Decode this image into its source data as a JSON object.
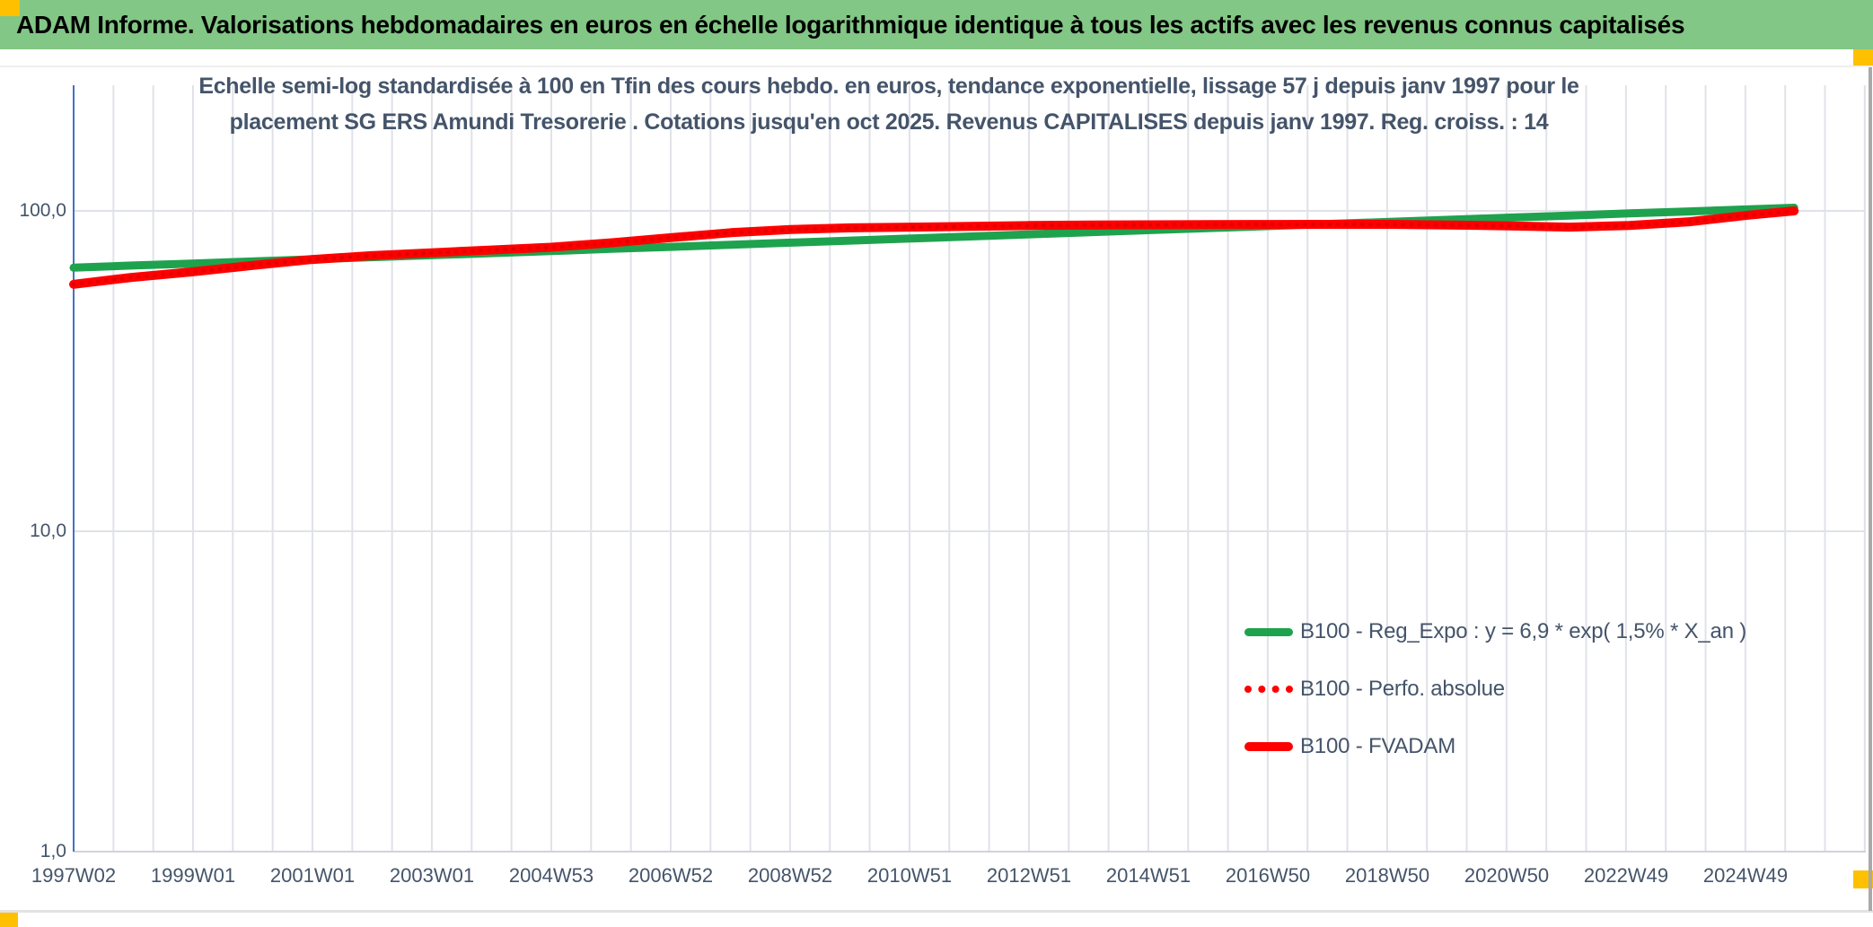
{
  "banner": {
    "title": "ADAM Informe. Valorisations hebdomadaires en euros en échelle logarithmique identique à tous les actifs avec les revenus connus capitalisés"
  },
  "colors": {
    "banner_bg": "#82C785",
    "corner_marker": "#FFC000",
    "title_text": "#44546A",
    "axis_text": "#44546A",
    "green_series": "#1FA24E",
    "red_series": "#FF0000",
    "dotted_red_series": "#E00000",
    "gridline": "#E0E2E8",
    "y_axis_line": "#4472C4"
  },
  "chart": {
    "title_line1": "Echelle semi-log standardisée à 100 en Tfin des cours hebdo. en euros, tendance exponentielle, lissage 57 j depuis janv 1997 pour le",
    "title_line2": "placement SG ERS Amundi Tresorerie . Cotations jusqu'en oct 2025. Revenus CAPITALISES depuis janv 1997. Reg. croiss. : 14"
  },
  "legend": [
    {
      "label": "B100 - Reg_Expo : y = 6,9 * exp( 1,5% *  X_an )",
      "style": "solid",
      "color": "#1FA24E"
    },
    {
      "label": "B100 - Perfo. absolue",
      "style": "dotted",
      "color": "#FF0000"
    },
    {
      "label": "B100 - FVADAM",
      "style": "solid",
      "color": "#FF0000"
    }
  ],
  "chart_data": {
    "type": "line",
    "x_scale": "time_weekly",
    "y_scale": "log10",
    "grid": true,
    "legend_position": "inside-bottom-right",
    "x_axis": {
      "tick_labels": [
        "1997W02",
        "1999W01",
        "2001W01",
        "2003W01",
        "2004W53",
        "2006W52",
        "2008W52",
        "2010W51",
        "2012W51",
        "2014W51",
        "2016W50",
        "2018W50",
        "2020W50",
        "2022W49",
        "2024W49"
      ],
      "tick_years": [
        1997.03,
        1999.02,
        2001.01,
        2003.0,
        2004.99,
        2006.98,
        2008.97,
        2010.96,
        2012.95,
        2014.94,
        2016.93,
        2018.92,
        2020.91,
        2022.9,
        2024.89
      ]
    },
    "y_axis": {
      "tick_labels": [
        "100,0",
        "10,0",
        "1,0"
      ],
      "tick_values": [
        100,
        10,
        1
      ],
      "range": [
        1,
        250
      ]
    },
    "x_years": [
      1997.03,
      1998,
      1999,
      2000,
      2001,
      2002,
      2003,
      2004,
      2005,
      2006,
      2007,
      2008,
      2009,
      2010,
      2011,
      2012,
      2013,
      2014,
      2015,
      2016,
      2017,
      2018,
      2019,
      2020,
      2021,
      2022,
      2023,
      2024,
      2025,
      2025.75
    ],
    "series": [
      {
        "name": "B100 - Reg_Expo : y = 6,9 * exp( 1,5% *  X_an )",
        "color": "#1FA24E",
        "style": "solid",
        "width": 9,
        "values": [
          66.5,
          67.5,
          68.5,
          69.5,
          70.6,
          71.7,
          72.7,
          73.8,
          74.9,
          76.1,
          77.2,
          78.4,
          79.6,
          80.8,
          82.0,
          83.2,
          84.5,
          85.8,
          87.1,
          88.4,
          89.7,
          91.1,
          92.4,
          93.8,
          95.3,
          96.7,
          98.2,
          99.6,
          101.1,
          102.3
        ]
      },
      {
        "name": "B100 - FVADAM",
        "color": "#FF0000",
        "style": "solid",
        "width": 10,
        "values": [
          59,
          62,
          64.5,
          67.5,
          70.5,
          72.5,
          74,
          75.5,
          77,
          79.5,
          82.5,
          85.5,
          87.5,
          88.5,
          89,
          89.5,
          90,
          90.3,
          90.5,
          90.6,
          90.7,
          90.8,
          90.8,
          90.3,
          89.8,
          89,
          90,
          92.5,
          97,
          100
        ]
      },
      {
        "name": "B100 - Perfo. absolue",
        "color": "#E00000",
        "style": "dotted",
        "width": 4.5,
        "values": [
          59,
          62,
          64.5,
          67.5,
          70.5,
          72.5,
          74,
          75.5,
          77,
          79.5,
          82.5,
          85.5,
          87.5,
          88.5,
          89,
          89.5,
          90,
          90.3,
          90.5,
          90.6,
          90.7,
          90.8,
          90.8,
          90.3,
          89.8,
          89,
          90,
          92.5,
          97,
          100
        ]
      }
    ]
  }
}
